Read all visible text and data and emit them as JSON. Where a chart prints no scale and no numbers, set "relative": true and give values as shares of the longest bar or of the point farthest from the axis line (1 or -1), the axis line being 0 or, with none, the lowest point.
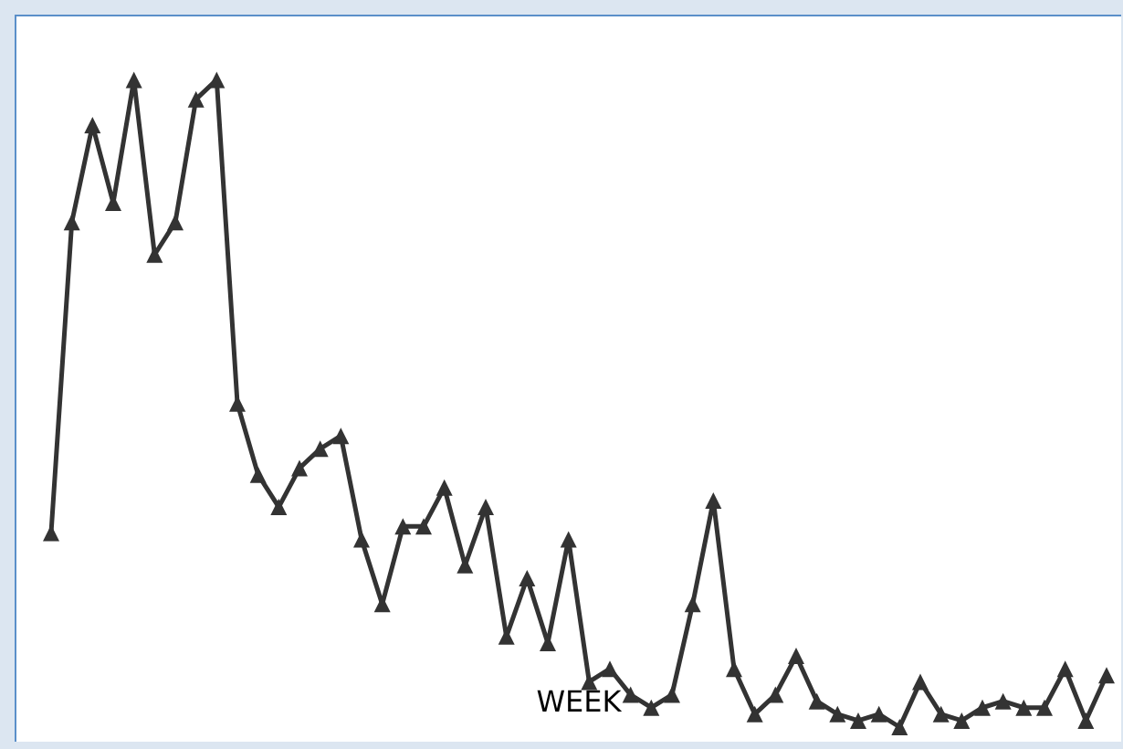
{
  "chart_data": {
    "type": "line",
    "xlabel": "WEEK",
    "relative": true,
    "grid": false,
    "marker": "triangle",
    "line_style": "solid",
    "categories": [
      null,
      null,
      null,
      null,
      null,
      null,
      null,
      null,
      null,
      null,
      null,
      null,
      null,
      null,
      null,
      null,
      null,
      null,
      null,
      null,
      null,
      null,
      null,
      null,
      null,
      null,
      null,
      null,
      null,
      null,
      null,
      null,
      null,
      null,
      null,
      null,
      null,
      null,
      null,
      null,
      null,
      null,
      null,
      null,
      null,
      null,
      null,
      null,
      null,
      null,
      null,
      null
    ],
    "series": [
      {
        "color": "#333333",
        "values": [
          0.3,
          0.78,
          0.93,
          0.81,
          1.0,
          0.73,
          0.78,
          0.97,
          1.0,
          0.5,
          0.39,
          0.34,
          0.4,
          0.43,
          0.45,
          0.29,
          0.19,
          0.31,
          0.31,
          0.37,
          0.25,
          0.34,
          0.14,
          0.23,
          0.13,
          0.29,
          0.07,
          0.09,
          0.05,
          0.03,
          0.05,
          0.19,
          0.35,
          0.09,
          0.02,
          0.05,
          0.11,
          0.04,
          0.02,
          0.01,
          0.02,
          0,
          0.07,
          0.02,
          0.01,
          0.03,
          0.04,
          0.03,
          0.03,
          0.09,
          0.01,
          0.08
        ]
      }
    ]
  }
}
